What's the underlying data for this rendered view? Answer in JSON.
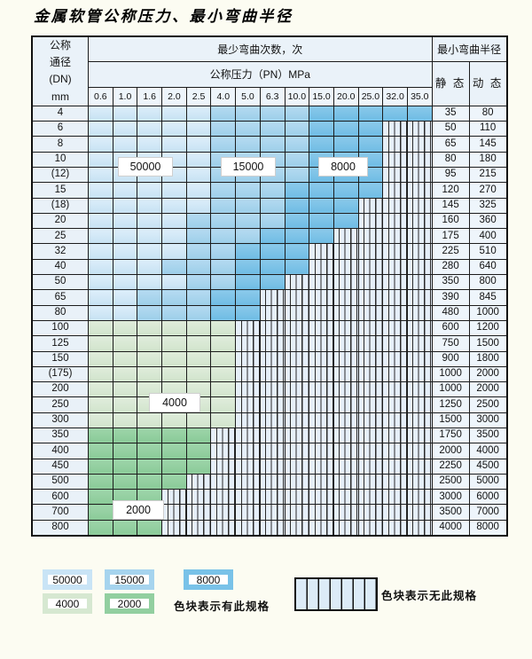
{
  "page": {
    "title": "金属软管公称压力、最小弯曲半径"
  },
  "table": {
    "dn_header_lines": [
      "公称",
      "通径",
      "(DN)",
      "mm"
    ],
    "bend_cycles_header": "最少弯曲次数，次",
    "pressure_header": "公称压力（PN）MPa",
    "radius_header": "最小弯曲半径",
    "static_label": "静 态",
    "dynamic_label": "动 态",
    "pressures": [
      "0.6",
      "1.0",
      "1.6",
      "2.0",
      "2.5",
      "4.0",
      "5.0",
      "6.3",
      "10.0",
      "15.0",
      "20.0",
      "25.0",
      "32.0",
      "35.0"
    ],
    "cell_legend_key": {
      "L": "50000",
      "M": "15000",
      "D": "8000",
      "G": "4000",
      "g": "2000",
      "H": "no-spec-hatch"
    },
    "rows": [
      {
        "dn": "4",
        "cells": "LLLLLMMMMDDDDD",
        "static": "35",
        "dynamic": "80"
      },
      {
        "dn": "6",
        "cells": "LLLLLMMMMDDDHH",
        "static": "50",
        "dynamic": "110"
      },
      {
        "dn": "8",
        "cells": "LLLLLMMMMDDDHH",
        "static": "65",
        "dynamic": "145"
      },
      {
        "dn": "10",
        "cells": "LLLLLMMMMDDDHH",
        "static": "80",
        "dynamic": "180"
      },
      {
        "dn": "(12)",
        "cells": "LLLLLMMMMDDDHH",
        "static": "95",
        "dynamic": "215"
      },
      {
        "dn": "15",
        "cells": "LLLLLMMMDDDDHH",
        "static": "120",
        "dynamic": "270"
      },
      {
        "dn": "(18)",
        "cells": "LLLLLMMMDDDHHH",
        "static": "145",
        "dynamic": "325"
      },
      {
        "dn": "20",
        "cells": "LLLLMMMMDDDHHH",
        "static": "160",
        "dynamic": "360"
      },
      {
        "dn": "25",
        "cells": "LLLLMMMDDDHHHH",
        "static": "175",
        "dynamic": "400"
      },
      {
        "dn": "32",
        "cells": "LLLLMMDDDHHHHH",
        "static": "225",
        "dynamic": "510"
      },
      {
        "dn": "40",
        "cells": "LLLMMMDDDHHHHH",
        "static": "280",
        "dynamic": "640"
      },
      {
        "dn": "50",
        "cells": "LLLLMMDDHHHHHH",
        "static": "350",
        "dynamic": "800"
      },
      {
        "dn": "65",
        "cells": "LLMMMDDHHHHHHH",
        "static": "390",
        "dynamic": "845"
      },
      {
        "dn": "80",
        "cells": "LLMMMDDHHHHHHH",
        "static": "480",
        "dynamic": "1000"
      },
      {
        "dn": "100",
        "cells": "GGGGGGHHHHHHHH",
        "static": "600",
        "dynamic": "1200"
      },
      {
        "dn": "125",
        "cells": "GGGGGGHHHHHHHH",
        "static": "750",
        "dynamic": "1500"
      },
      {
        "dn": "150",
        "cells": "GGGGGGHHHHHHHH",
        "static": "900",
        "dynamic": "1800"
      },
      {
        "dn": "(175)",
        "cells": "GGGGGGHHHHHHHH",
        "static": "1000",
        "dynamic": "2000"
      },
      {
        "dn": "200",
        "cells": "GGGGGGHHHHHHHH",
        "static": "1000",
        "dynamic": "2000"
      },
      {
        "dn": "250",
        "cells": "GGGGGGHHHHHHHH",
        "static": "1250",
        "dynamic": "2500"
      },
      {
        "dn": "300",
        "cells": "GGGGGGHHHHHHHH",
        "static": "1500",
        "dynamic": "3000"
      },
      {
        "dn": "350",
        "cells": "gggggHHHHHHHHH",
        "static": "1750",
        "dynamic": "3500"
      },
      {
        "dn": "400",
        "cells": "gggggHHHHHHHHH",
        "static": "2000",
        "dynamic": "4000"
      },
      {
        "dn": "450",
        "cells": "gggggHHHHHHHHH",
        "static": "2250",
        "dynamic": "4500"
      },
      {
        "dn": "500",
        "cells": "ggggHHHHHHHHHH",
        "static": "2500",
        "dynamic": "5000"
      },
      {
        "dn": "600",
        "cells": "gggHHHHHHHHHHH",
        "static": "3000",
        "dynamic": "6000"
      },
      {
        "dn": "700",
        "cells": "gggHHHHHHHHHHH",
        "static": "3500",
        "dynamic": "7000"
      },
      {
        "dn": "800",
        "cells": "gggHHHHHHHHHHH",
        "static": "4000",
        "dynamic": "8000"
      }
    ]
  },
  "overlay_labels": {
    "l50000": "50000",
    "l15000": "15000",
    "l8000": "8000",
    "l4000": "4000",
    "l2000": "2000"
  },
  "legend": {
    "swatches": [
      {
        "label": "50000",
        "color": "#c9e4f6"
      },
      {
        "label": "15000",
        "color": "#a6d4ee"
      },
      {
        "label": "8000",
        "color": "#79c2e8"
      },
      {
        "label": "4000",
        "color": "#d6e8d1"
      },
      {
        "label": "2000",
        "color": "#92cfa0"
      }
    ],
    "has_spec_text": "色块表示有此规格",
    "no_spec_text": "色块表示无此规格"
  },
  "colors": {
    "cycles_50000": "#c9e4f6",
    "cycles_15000": "#a6d4ee",
    "cycles_8000": "#79c2e8",
    "cycles_4000": "#d6e8d1",
    "cycles_2000": "#92cfa0",
    "page_background": "#fcfcf2",
    "header_background": "#eaf2f9"
  }
}
